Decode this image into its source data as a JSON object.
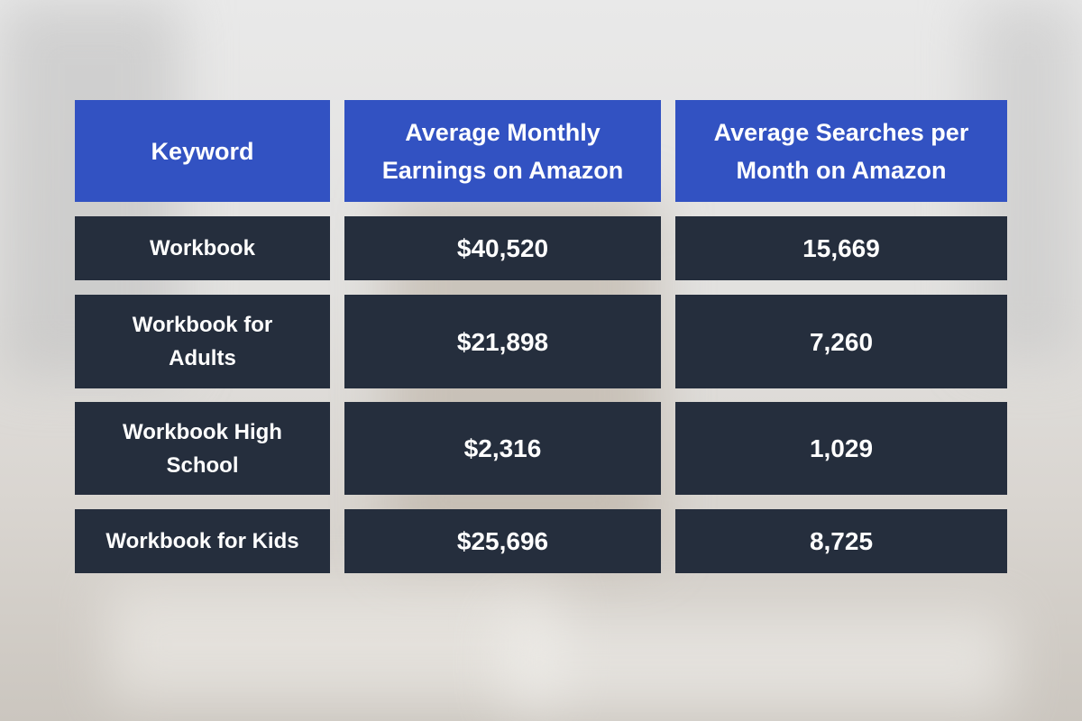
{
  "table": {
    "headers": [
      "Keyword",
      "Average Monthly\nEarnings on Amazon",
      "Average Searches per\nMonth on Amazon"
    ],
    "rows": [
      [
        "Workbook",
        "$40,520",
        "15,669"
      ],
      [
        "Workbook for\nAdults",
        "$21,898",
        "7,260"
      ],
      [
        "Workbook High\nSchool",
        "$2,316",
        "1,029"
      ],
      [
        "Workbook for Kids",
        "$25,696",
        "8,725"
      ]
    ]
  }
}
